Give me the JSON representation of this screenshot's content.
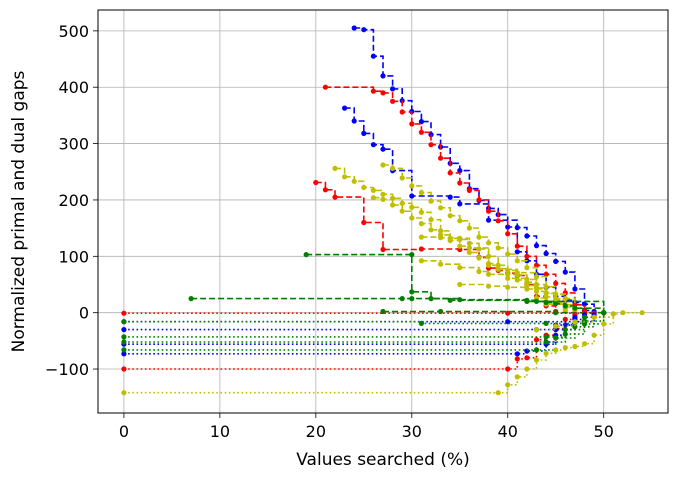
{
  "chart_data": {
    "type": "line",
    "title": "",
    "xlabel": "Values searched (%)",
    "ylabel": "Normalized primal and dual gaps",
    "xlim": [
      -2.7,
      56.7
    ],
    "ylim": [
      -178,
      537
    ],
    "xticks": [
      0,
      10,
      20,
      30,
      40,
      50
    ],
    "yticks": [
      -100,
      0,
      100,
      200,
      300,
      400,
      500
    ],
    "grid": true,
    "legend": null,
    "colors": {
      "blue": "#0000ff",
      "red": "#ff0000",
      "olive": "#bfbf00",
      "green": "#008000"
    },
    "series": [
      {
        "color": "blue",
        "style": "dashed",
        "points": [
          [
            24,
            505
          ],
          [
            25,
            502
          ],
          [
            26,
            455
          ],
          [
            27,
            420
          ],
          [
            28,
            397
          ],
          [
            29,
            376
          ],
          [
            30,
            357
          ],
          [
            31,
            339
          ],
          [
            32,
            316
          ],
          [
            33,
            294
          ],
          [
            34,
            265
          ],
          [
            35,
            252
          ],
          [
            36,
            220
          ],
          [
            37,
            199
          ],
          [
            38,
            185
          ],
          [
            39,
            174
          ],
          [
            40,
            152
          ],
          [
            41,
            151
          ],
          [
            42,
            136
          ],
          [
            43,
            119
          ],
          [
            44,
            105
          ],
          [
            45,
            91
          ],
          [
            46,
            72
          ],
          [
            47,
            42
          ],
          [
            48,
            15
          ],
          [
            49,
            2
          ]
        ]
      },
      {
        "color": "blue",
        "style": "dashed",
        "points": [
          [
            23,
            363
          ],
          [
            24,
            340
          ],
          [
            25,
            318
          ],
          [
            26,
            298
          ],
          [
            27,
            290
          ],
          [
            28,
            252
          ],
          [
            30,
            207
          ],
          [
            34,
            205
          ],
          [
            35,
            193
          ],
          [
            38,
            164
          ],
          [
            41,
            108
          ],
          [
            42,
            92
          ],
          [
            43,
            68
          ],
          [
            44,
            45
          ],
          [
            45,
            29
          ],
          [
            46,
            22
          ],
          [
            47,
            18
          ],
          [
            48,
            4
          ],
          [
            49,
            0
          ]
        ]
      },
      {
        "color": "red",
        "style": "dashed",
        "points": [
          [
            21,
            400
          ],
          [
            26,
            393
          ],
          [
            27,
            390
          ],
          [
            28,
            375
          ],
          [
            29,
            356
          ],
          [
            30,
            335
          ],
          [
            31,
            320
          ],
          [
            32,
            298
          ],
          [
            33,
            274
          ],
          [
            34,
            248
          ],
          [
            35,
            230
          ],
          [
            36,
            217
          ],
          [
            37,
            200
          ],
          [
            38,
            180
          ],
          [
            39,
            163
          ],
          [
            40,
            140
          ],
          [
            41,
            118
          ],
          [
            42,
            100
          ],
          [
            43,
            84
          ],
          [
            44,
            68
          ],
          [
            45,
            52
          ],
          [
            46,
            35
          ],
          [
            47,
            14
          ],
          [
            48,
            2
          ]
        ]
      },
      {
        "color": "red",
        "style": "dashed",
        "points": [
          [
            20,
            231
          ],
          [
            21,
            218
          ],
          [
            22,
            205
          ],
          [
            25,
            160
          ],
          [
            27,
            112
          ],
          [
            31,
            113
          ],
          [
            35,
            112
          ],
          [
            37,
            98
          ],
          [
            38,
            79
          ],
          [
            39,
            75
          ],
          [
            40,
            70
          ],
          [
            41,
            66
          ],
          [
            42,
            50
          ],
          [
            43,
            29
          ],
          [
            44,
            12
          ],
          [
            45,
            2
          ]
        ]
      },
      {
        "color": "olive",
        "style": "dashed",
        "points": [
          [
            22,
            256
          ],
          [
            23,
            241
          ],
          [
            24,
            233
          ],
          [
            25,
            222
          ],
          [
            26,
            217
          ],
          [
            27,
            210
          ],
          [
            28,
            203
          ],
          [
            29,
            194
          ],
          [
            30,
            187
          ],
          [
            31,
            178
          ],
          [
            32,
            165
          ],
          [
            33,
            145
          ],
          [
            34,
            132
          ],
          [
            35,
            130
          ],
          [
            36,
            123
          ],
          [
            37,
            113
          ],
          [
            38,
            100
          ],
          [
            39,
            84
          ],
          [
            40,
            75
          ],
          [
            41,
            67
          ],
          [
            42,
            59
          ],
          [
            43,
            50
          ],
          [
            44,
            35
          ],
          [
            45,
            22
          ],
          [
            46,
            10
          ],
          [
            47,
            4
          ]
        ]
      },
      {
        "color": "olive",
        "style": "dashed",
        "points": [
          [
            26,
            204
          ],
          [
            27,
            201
          ],
          [
            28,
            191
          ],
          [
            29,
            180
          ],
          [
            30,
            168
          ],
          [
            31,
            158
          ],
          [
            32,
            147
          ],
          [
            33,
            138
          ],
          [
            34,
            128
          ],
          [
            35,
            118
          ],
          [
            36,
            107
          ],
          [
            37,
            97
          ],
          [
            38,
            87
          ],
          [
            39,
            78
          ],
          [
            40,
            68
          ],
          [
            41,
            58
          ],
          [
            42,
            48
          ],
          [
            43,
            38
          ],
          [
            44,
            28
          ],
          [
            45,
            18
          ],
          [
            46,
            8
          ]
        ]
      },
      {
        "color": "olive",
        "style": "dashed",
        "points": [
          [
            27,
            262
          ],
          [
            28,
            256
          ],
          [
            29,
            239
          ],
          [
            30,
            225
          ],
          [
            31,
            213
          ],
          [
            32,
            198
          ],
          [
            33,
            186
          ],
          [
            34,
            172
          ],
          [
            35,
            163
          ],
          [
            36,
            150
          ],
          [
            37,
            134
          ],
          [
            38,
            124
          ],
          [
            39,
            115
          ],
          [
            40,
            104
          ],
          [
            41,
            92
          ],
          [
            42,
            80
          ],
          [
            43,
            64
          ],
          [
            44,
            46
          ],
          [
            45,
            33
          ],
          [
            46,
            25
          ],
          [
            47,
            8
          ]
        ]
      },
      {
        "color": "olive",
        "style": "dashed",
        "points": [
          [
            31,
            134
          ],
          [
            33,
            133
          ],
          [
            35,
            132
          ],
          [
            36,
            115
          ],
          [
            38,
            84
          ],
          [
            39,
            77
          ],
          [
            41,
            71
          ],
          [
            43,
            26
          ],
          [
            44,
            20
          ],
          [
            45,
            18
          ]
        ]
      },
      {
        "color": "olive",
        "style": "dashed",
        "points": [
          [
            31,
            92
          ],
          [
            33,
            86
          ],
          [
            35,
            80
          ],
          [
            37,
            73
          ],
          [
            38,
            68
          ],
          [
            40,
            61
          ],
          [
            42,
            54
          ],
          [
            43,
            44
          ],
          [
            44,
            34
          ],
          [
            45,
            25
          ],
          [
            46,
            14
          ],
          [
            47,
            5
          ]
        ]
      },
      {
        "color": "olive",
        "style": "dashed",
        "points": [
          [
            35,
            50
          ],
          [
            38,
            47
          ],
          [
            40,
            45
          ],
          [
            42,
            42
          ],
          [
            44,
            15
          ],
          [
            46,
            4
          ]
        ]
      },
      {
        "color": "green",
        "style": "dashed",
        "points": [
          [
            19,
            103
          ],
          [
            30,
            103
          ],
          [
            30,
            37
          ],
          [
            32,
            25
          ],
          [
            34,
            22
          ],
          [
            42,
            20
          ],
          [
            44,
            18
          ],
          [
            45,
            16
          ],
          [
            46,
            12
          ],
          [
            47,
            8
          ],
          [
            50,
            0
          ]
        ]
      },
      {
        "color": "green",
        "style": "dashed",
        "points": [
          [
            7,
            25
          ],
          [
            29,
            25
          ],
          [
            30,
            25
          ],
          [
            35,
            23
          ],
          [
            42,
            22
          ],
          [
            43,
            20
          ],
          [
            50,
            0
          ]
        ]
      },
      {
        "color": "green",
        "style": "dashed",
        "points": [
          [
            27,
            2
          ],
          [
            33,
            2
          ],
          [
            45,
            0
          ],
          [
            50,
            0
          ]
        ]
      },
      {
        "color": "red",
        "style": "dotted",
        "points": [
          [
            0,
            -1
          ],
          [
            40,
            -1
          ],
          [
            49,
            -1
          ]
        ]
      },
      {
        "color": "red",
        "style": "dotted",
        "points": [
          [
            0,
            -100
          ],
          [
            40,
            -100
          ],
          [
            41,
            -82
          ],
          [
            42,
            -80
          ],
          [
            43,
            -48
          ],
          [
            44,
            -40
          ],
          [
            45,
            -28
          ],
          [
            46,
            -12
          ],
          [
            47,
            -4
          ]
        ]
      },
      {
        "color": "blue",
        "style": "dotted",
        "points": [
          [
            0,
            -16
          ],
          [
            40,
            -16
          ],
          [
            49,
            -4
          ]
        ]
      },
      {
        "color": "blue",
        "style": "dotted",
        "points": [
          [
            0,
            -30
          ],
          [
            43,
            -30
          ],
          [
            45,
            -22
          ],
          [
            47,
            -12
          ],
          [
            48,
            -4
          ]
        ]
      },
      {
        "color": "blue",
        "style": "dotted",
        "points": [
          [
            0,
            -56
          ],
          [
            44,
            -56
          ],
          [
            45,
            -40
          ],
          [
            46,
            -22
          ],
          [
            47,
            -8
          ]
        ]
      },
      {
        "color": "blue",
        "style": "dotted",
        "points": [
          [
            0,
            -73
          ],
          [
            41,
            -73
          ],
          [
            42,
            -68
          ],
          [
            44,
            -52
          ],
          [
            45,
            -30
          ],
          [
            47,
            -10
          ]
        ]
      },
      {
        "color": "green",
        "style": "dotted",
        "points": [
          [
            0,
            -16
          ],
          [
            31,
            -19
          ],
          [
            44,
            -19
          ],
          [
            48,
            -8
          ],
          [
            50,
            0
          ]
        ]
      },
      {
        "color": "green",
        "style": "dotted",
        "points": [
          [
            0,
            -43
          ],
          [
            44,
            -43
          ],
          [
            46,
            -30
          ],
          [
            48,
            -15
          ],
          [
            50,
            0
          ]
        ]
      },
      {
        "color": "green",
        "style": "dotted",
        "points": [
          [
            0,
            -52
          ],
          [
            44,
            -52
          ],
          [
            46,
            -38
          ],
          [
            48,
            -20
          ],
          [
            50,
            0
          ]
        ]
      },
      {
        "color": "green",
        "style": "dotted",
        "points": [
          [
            0,
            -66
          ],
          [
            43,
            -66
          ],
          [
            45,
            -45
          ],
          [
            47,
            -25
          ],
          [
            49,
            -8
          ]
        ]
      },
      {
        "color": "olive",
        "style": "dotted",
        "points": [
          [
            0,
            -142
          ],
          [
            39,
            -142
          ],
          [
            40,
            -128
          ],
          [
            41,
            -114
          ],
          [
            42,
            -100
          ],
          [
            43,
            -84
          ],
          [
            44,
            -72
          ],
          [
            45,
            -66
          ],
          [
            46,
            -62
          ],
          [
            47,
            -60
          ],
          [
            48,
            -55
          ],
          [
            49,
            -40
          ],
          [
            50,
            -20
          ],
          [
            51,
            -2
          ],
          [
            52,
            0
          ],
          [
            54,
            0
          ]
        ]
      },
      {
        "color": "olive",
        "style": "dotted",
        "points": [
          [
            43,
            -30
          ],
          [
            45,
            -24
          ],
          [
            47,
            -16
          ],
          [
            49,
            -8
          ],
          [
            51,
            -2
          ]
        ]
      }
    ]
  }
}
